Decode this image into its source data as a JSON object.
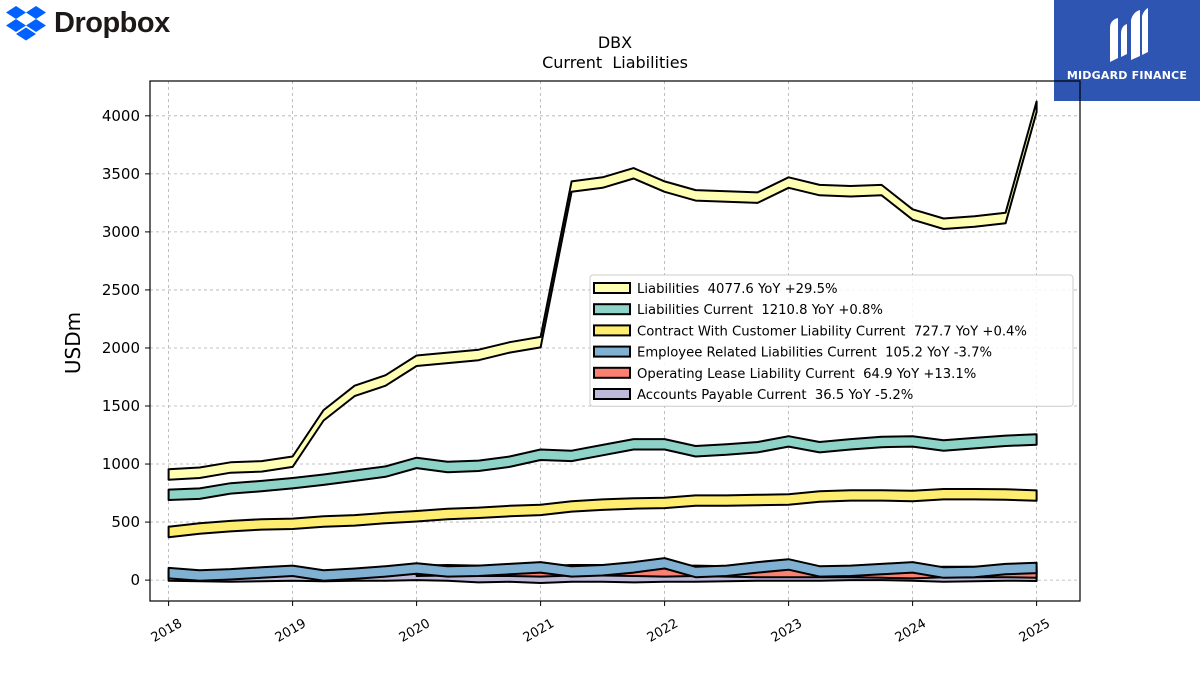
{
  "brand": {
    "name": "Dropbox",
    "logo_icon": "dropbox-box-icon",
    "color": "#0061fe"
  },
  "badge": {
    "name": "MIDGARD FINANCE",
    "icon": "midgard-logo-icon",
    "color": "#2f55b2"
  },
  "chart_data": {
    "type": "area",
    "title": "DBX",
    "subtitle": "Current  Liabilities",
    "ylabel": "USDm",
    "xlabel": "",
    "xlim": [
      2017.85,
      2025.35
    ],
    "ylim": [
      -180,
      4300
    ],
    "yticks": [
      0,
      500,
      1000,
      1500,
      2000,
      2500,
      3000,
      3500,
      4000
    ],
    "xticks": [
      "2018",
      "2019",
      "2020",
      "2021",
      "2022",
      "2023",
      "2024",
      "2025"
    ],
    "xtick_values": [
      2018,
      2019,
      2020,
      2021,
      2022,
      2023,
      2024,
      2025
    ],
    "grid": true,
    "legend_position": "center-right",
    "band_half_width": 45,
    "series": [
      {
        "name": "Liabilities",
        "legend": "Liabilities  4077.6 YoY +29.5%",
        "color": "#ffffb3",
        "x": [
          2018.0,
          2018.25,
          2018.5,
          2018.75,
          2019.0,
          2019.25,
          2019.5,
          2019.75,
          2020.0,
          2020.25,
          2020.5,
          2020.75,
          2021.0,
          2021.25,
          2021.5,
          2021.75,
          2022.0,
          2022.25,
          2022.5,
          2022.75,
          2023.0,
          2023.25,
          2023.5,
          2023.75,
          2024.0,
          2024.25,
          2024.5,
          2024.75,
          2025.0
        ],
        "y": [
          910,
          925,
          970,
          980,
          1020,
          1420,
          1630,
          1720,
          1890,
          1915,
          1940,
          2005,
          2050,
          3390,
          3425,
          3505,
          3390,
          3315,
          3305,
          3295,
          3425,
          3360,
          3350,
          3360,
          3150,
          3070,
          3090,
          3120,
          4078
        ]
      },
      {
        "name": "Liabilities Current",
        "legend": "Liabilities Current  1210.8 YoY +0.8%",
        "color": "#8dd3c7",
        "x": [
          2018.0,
          2018.25,
          2018.5,
          2018.75,
          2019.0,
          2019.25,
          2019.5,
          2019.75,
          2020.0,
          2020.25,
          2020.5,
          2020.75,
          2021.0,
          2021.25,
          2021.5,
          2021.75,
          2022.0,
          2022.25,
          2022.5,
          2022.75,
          2023.0,
          2023.25,
          2023.5,
          2023.75,
          2024.0,
          2024.25,
          2024.5,
          2024.75,
          2025.0
        ],
        "y": [
          735,
          745,
          790,
          810,
          835,
          865,
          900,
          935,
          1010,
          975,
          985,
          1020,
          1080,
          1070,
          1120,
          1170,
          1170,
          1110,
          1125,
          1145,
          1195,
          1145,
          1170,
          1190,
          1195,
          1160,
          1180,
          1200,
          1211
        ]
      },
      {
        "name": "Contract With Customer Liability Current",
        "legend": "Contract With Customer Liability Current  727.7 YoY +0.4%",
        "color": "#ffed6f",
        "x": [
          2018.0,
          2018.25,
          2018.5,
          2018.75,
          2019.0,
          2019.25,
          2019.5,
          2019.75,
          2020.0,
          2020.25,
          2020.5,
          2020.75,
          2021.0,
          2021.25,
          2021.5,
          2021.75,
          2022.0,
          2022.25,
          2022.5,
          2022.75,
          2023.0,
          2023.25,
          2023.5,
          2023.75,
          2024.0,
          2024.25,
          2024.5,
          2024.75,
          2025.0
        ],
        "y": [
          415,
          445,
          465,
          480,
          485,
          505,
          515,
          535,
          550,
          570,
          580,
          595,
          605,
          635,
          650,
          660,
          665,
          685,
          685,
          690,
          695,
          720,
          730,
          730,
          725,
          740,
          740,
          738,
          728
        ]
      },
      {
        "name": "Employee Related Liabilities Current",
        "legend": "Employee Related Liabilities Current  105.2 YoY -3.7%",
        "color": "#80b1d3",
        "x": [
          2018.0,
          2018.25,
          2018.5,
          2018.75,
          2019.0,
          2019.25,
          2019.5,
          2019.75,
          2020.0,
          2020.25,
          2020.5,
          2020.75,
          2021.0,
          2021.25,
          2021.5,
          2021.75,
          2022.0,
          2022.25,
          2022.5,
          2022.75,
          2023.0,
          2023.25,
          2023.5,
          2023.75,
          2024.0,
          2024.25,
          2024.5,
          2024.75,
          2025.0
        ],
        "y": [
          60,
          40,
          50,
          65,
          80,
          40,
          55,
          75,
          100,
          75,
          80,
          95,
          110,
          75,
          85,
          110,
          145,
          70,
          80,
          110,
          135,
          75,
          80,
          95,
          110,
          65,
          70,
          95,
          105
        ]
      },
      {
        "name": "Operating Lease Liability Current",
        "legend": "Operating Lease Liability Current  64.9 YoY +13.1%",
        "color": "#fb8072",
        "x": [
          2020.0,
          2020.25,
          2020.5,
          2020.75,
          2021.0,
          2021.25,
          2021.5,
          2021.75,
          2022.0,
          2022.25,
          2022.5,
          2022.75,
          2023.0,
          2023.25,
          2023.5,
          2023.75,
          2024.0,
          2024.25,
          2024.5,
          2024.75,
          2025.0
        ],
        "y": [
          80,
          85,
          80,
          80,
          75,
          85,
          85,
          80,
          75,
          80,
          75,
          70,
          70,
          70,
          70,
          65,
          60,
          70,
          70,
          70,
          65
        ]
      },
      {
        "name": "Accounts Payable Current",
        "legend": "Accounts Payable Current  36.5 YoY -5.2%",
        "color": "#bebada",
        "x": [
          2018.0,
          2018.25,
          2018.5,
          2018.75,
          2019.0,
          2019.25,
          2019.5,
          2019.75,
          2020.0,
          2020.25,
          2020.5,
          2020.75,
          2021.0,
          2021.25,
          2021.5,
          2021.75,
          2022.0,
          2022.25,
          2022.5,
          2022.75,
          2023.0,
          2023.25,
          2023.5,
          2023.75,
          2024.0,
          2024.25,
          2024.5,
          2024.75,
          2025.0
        ],
        "y": [
          40,
          35,
          30,
          35,
          40,
          35,
          40,
          40,
          45,
          40,
          25,
          30,
          20,
          30,
          30,
          25,
          30,
          30,
          35,
          40,
          40,
          40,
          45,
          45,
          40,
          30,
          35,
          40,
          37
        ]
      }
    ]
  }
}
